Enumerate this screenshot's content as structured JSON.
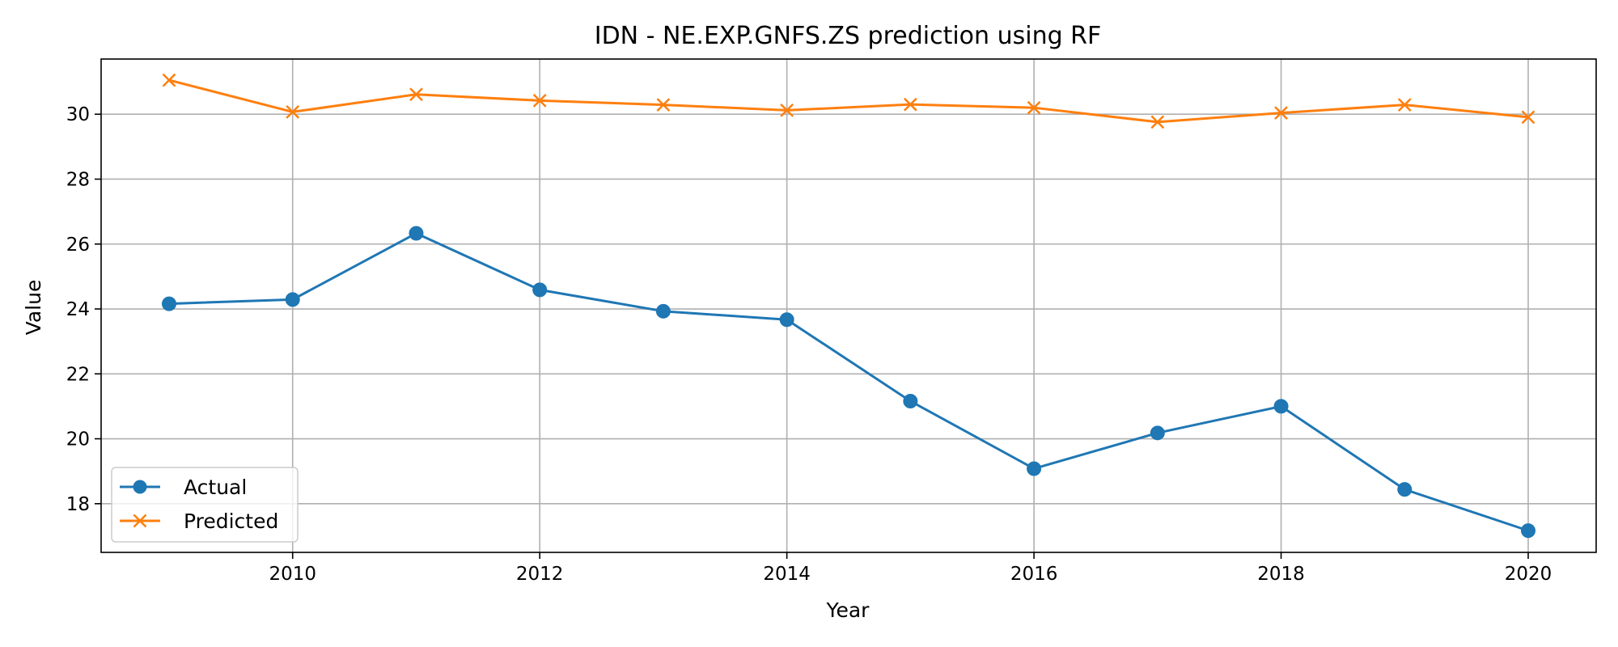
{
  "chart_data": {
    "type": "line",
    "title": "IDN - NE.EXP.GNFS.ZS prediction using RF",
    "xlabel": "Year",
    "ylabel": "Value",
    "x": [
      2009,
      2010,
      2011,
      2012,
      2013,
      2014,
      2015,
      2016,
      2017,
      2018,
      2019,
      2020
    ],
    "xlim": [
      2008.45,
      2020.55
    ],
    "ylim": [
      16.5,
      31.7
    ],
    "x_ticks": [
      2010,
      2012,
      2014,
      2016,
      2018,
      2020
    ],
    "y_ticks": [
      18,
      20,
      22,
      24,
      26,
      28,
      30
    ],
    "grid": true,
    "legend_position": "lower left",
    "series": [
      {
        "name": "Actual",
        "color": "#1f77b4",
        "marker": "circle",
        "values": [
          24.16,
          24.29,
          26.33,
          24.59,
          23.93,
          23.67,
          21.16,
          19.08,
          20.18,
          21.0,
          18.44,
          17.17
        ]
      },
      {
        "name": "Predicted",
        "color": "#ff7f0e",
        "marker": "x",
        "values": [
          31.05,
          30.07,
          30.61,
          30.42,
          30.29,
          30.12,
          30.3,
          30.2,
          29.76,
          30.04,
          30.29,
          29.91
        ]
      }
    ]
  }
}
